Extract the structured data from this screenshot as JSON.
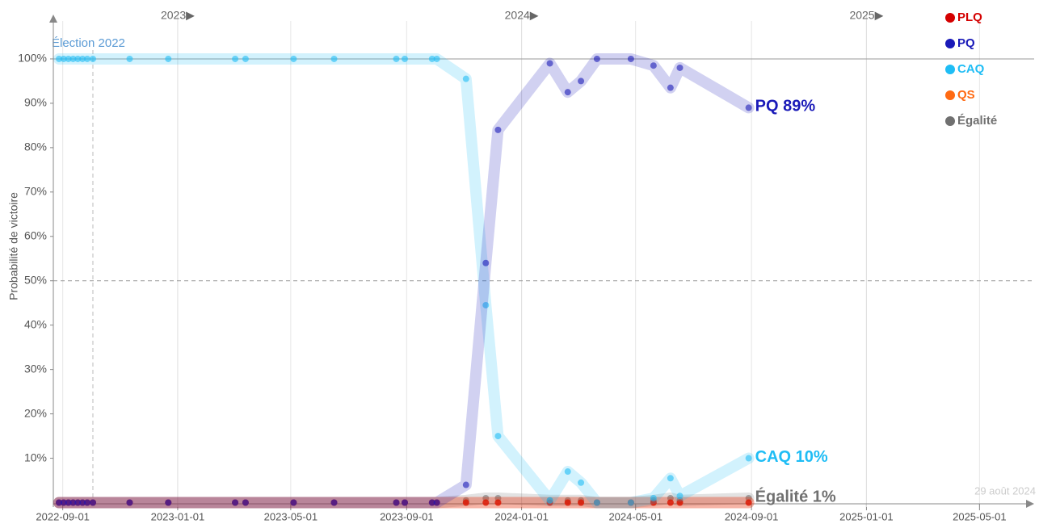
{
  "chart_data": {
    "type": "line",
    "y_label": "Probabilité de victoire",
    "x": [
      "2022-08-28",
      "2022-09-02",
      "2022-09-07",
      "2022-09-12",
      "2022-09-17",
      "2022-09-22",
      "2022-09-27",
      "2022-10-03",
      "2022-11-11",
      "2022-12-22",
      "2023-03-03",
      "2023-03-14",
      "2023-05-04",
      "2023-06-16",
      "2023-08-21",
      "2023-08-30",
      "2023-09-28",
      "2023-10-03",
      "2023-11-03",
      "2023-11-24",
      "2023-12-07",
      "2024-01-31",
      "2024-02-19",
      "2024-03-04",
      "2024-03-21",
      "2024-04-26",
      "2024-05-20",
      "2024-06-07",
      "2024-06-17",
      "2024-08-29"
    ],
    "series": [
      {
        "name": "Égalité",
        "color": "#707070",
        "end_label": "Égalité 1%",
        "values": [
          0,
          0,
          0,
          0,
          0,
          0,
          0,
          0,
          0,
          0,
          0,
          0,
          0,
          0,
          0,
          0,
          0,
          0,
          0.5,
          1,
          1,
          0.5,
          0.5,
          0.5,
          0,
          0,
          0.5,
          1,
          0.5,
          1
        ]
      },
      {
        "name": "QS",
        "color": "#ff6a13",
        "values": [
          0,
          0,
          0,
          0,
          0,
          0,
          0,
          0,
          0,
          0,
          0,
          0,
          0,
          0,
          0,
          0,
          0,
          0,
          0,
          0,
          0,
          0,
          0,
          0,
          0,
          0,
          0,
          0,
          0,
          0
        ]
      },
      {
        "name": "PLQ",
        "color": "#d40000",
        "values": [
          0,
          0,
          0,
          0,
          0,
          0,
          0,
          0,
          0,
          0,
          0,
          0,
          0,
          0,
          0,
          0,
          0,
          0,
          0,
          0,
          0,
          0,
          0,
          0,
          0,
          0,
          0,
          0,
          0,
          0
        ]
      },
      {
        "name": "CAQ",
        "color": "#1fbdf5",
        "end_label": "CAQ 10%",
        "values": [
          100,
          100,
          100,
          100,
          100,
          100,
          100,
          100,
          100,
          100,
          100,
          100,
          100,
          100,
          100,
          100,
          100,
          100,
          95.5,
          44.5,
          15,
          0.5,
          7,
          4.5,
          0,
          0,
          1,
          5.5,
          1.5,
          10
        ]
      },
      {
        "name": "PQ",
        "color": "#1a1ab8",
        "end_label": "PQ 89%",
        "values": [
          0,
          0,
          0,
          0,
          0,
          0,
          0,
          0,
          0,
          0,
          0,
          0,
          0,
          0,
          0,
          0,
          0,
          0,
          4,
          54,
          84,
          99,
          92.5,
          95,
          100,
          100,
          98.5,
          93.5,
          98,
          89
        ]
      }
    ],
    "legend_order": [
      "PLQ",
      "PQ",
      "CAQ",
      "QS",
      "Égalité"
    ],
    "xlim": [
      "2022-08-22",
      "2025-06-28"
    ],
    "xticks": [
      "2022-09-01",
      "2023-01-01",
      "2023-05-01",
      "2023-09-01",
      "2024-01-01",
      "2024-05-01",
      "2024-09-01",
      "2025-01-01",
      "2025-05-01"
    ],
    "year_markers": [
      {
        "value": "2023-01-01",
        "label": "2023▶"
      },
      {
        "value": "2024-01-01",
        "label": "2024▶"
      },
      {
        "value": "2025-01-01",
        "label": "2025▶"
      }
    ],
    "ylim": [
      -1,
      110
    ],
    "yticks": [
      {
        "value": 10,
        "label": "10%"
      },
      {
        "value": 20,
        "label": "20%"
      },
      {
        "value": 30,
        "label": "30%"
      },
      {
        "value": 40,
        "label": "40%"
      },
      {
        "value": 50,
        "label": "50%"
      },
      {
        "value": 60,
        "label": "60%"
      },
      {
        "value": 70,
        "label": "70%"
      },
      {
        "value": 80,
        "label": "80%"
      },
      {
        "value": 90,
        "label": "90%"
      },
      {
        "value": 100,
        "label": "100%"
      }
    ],
    "reference_line": 50,
    "event": {
      "value": "2022-10-03",
      "label": "Élection 2022"
    },
    "updated": "29 août 2024"
  }
}
